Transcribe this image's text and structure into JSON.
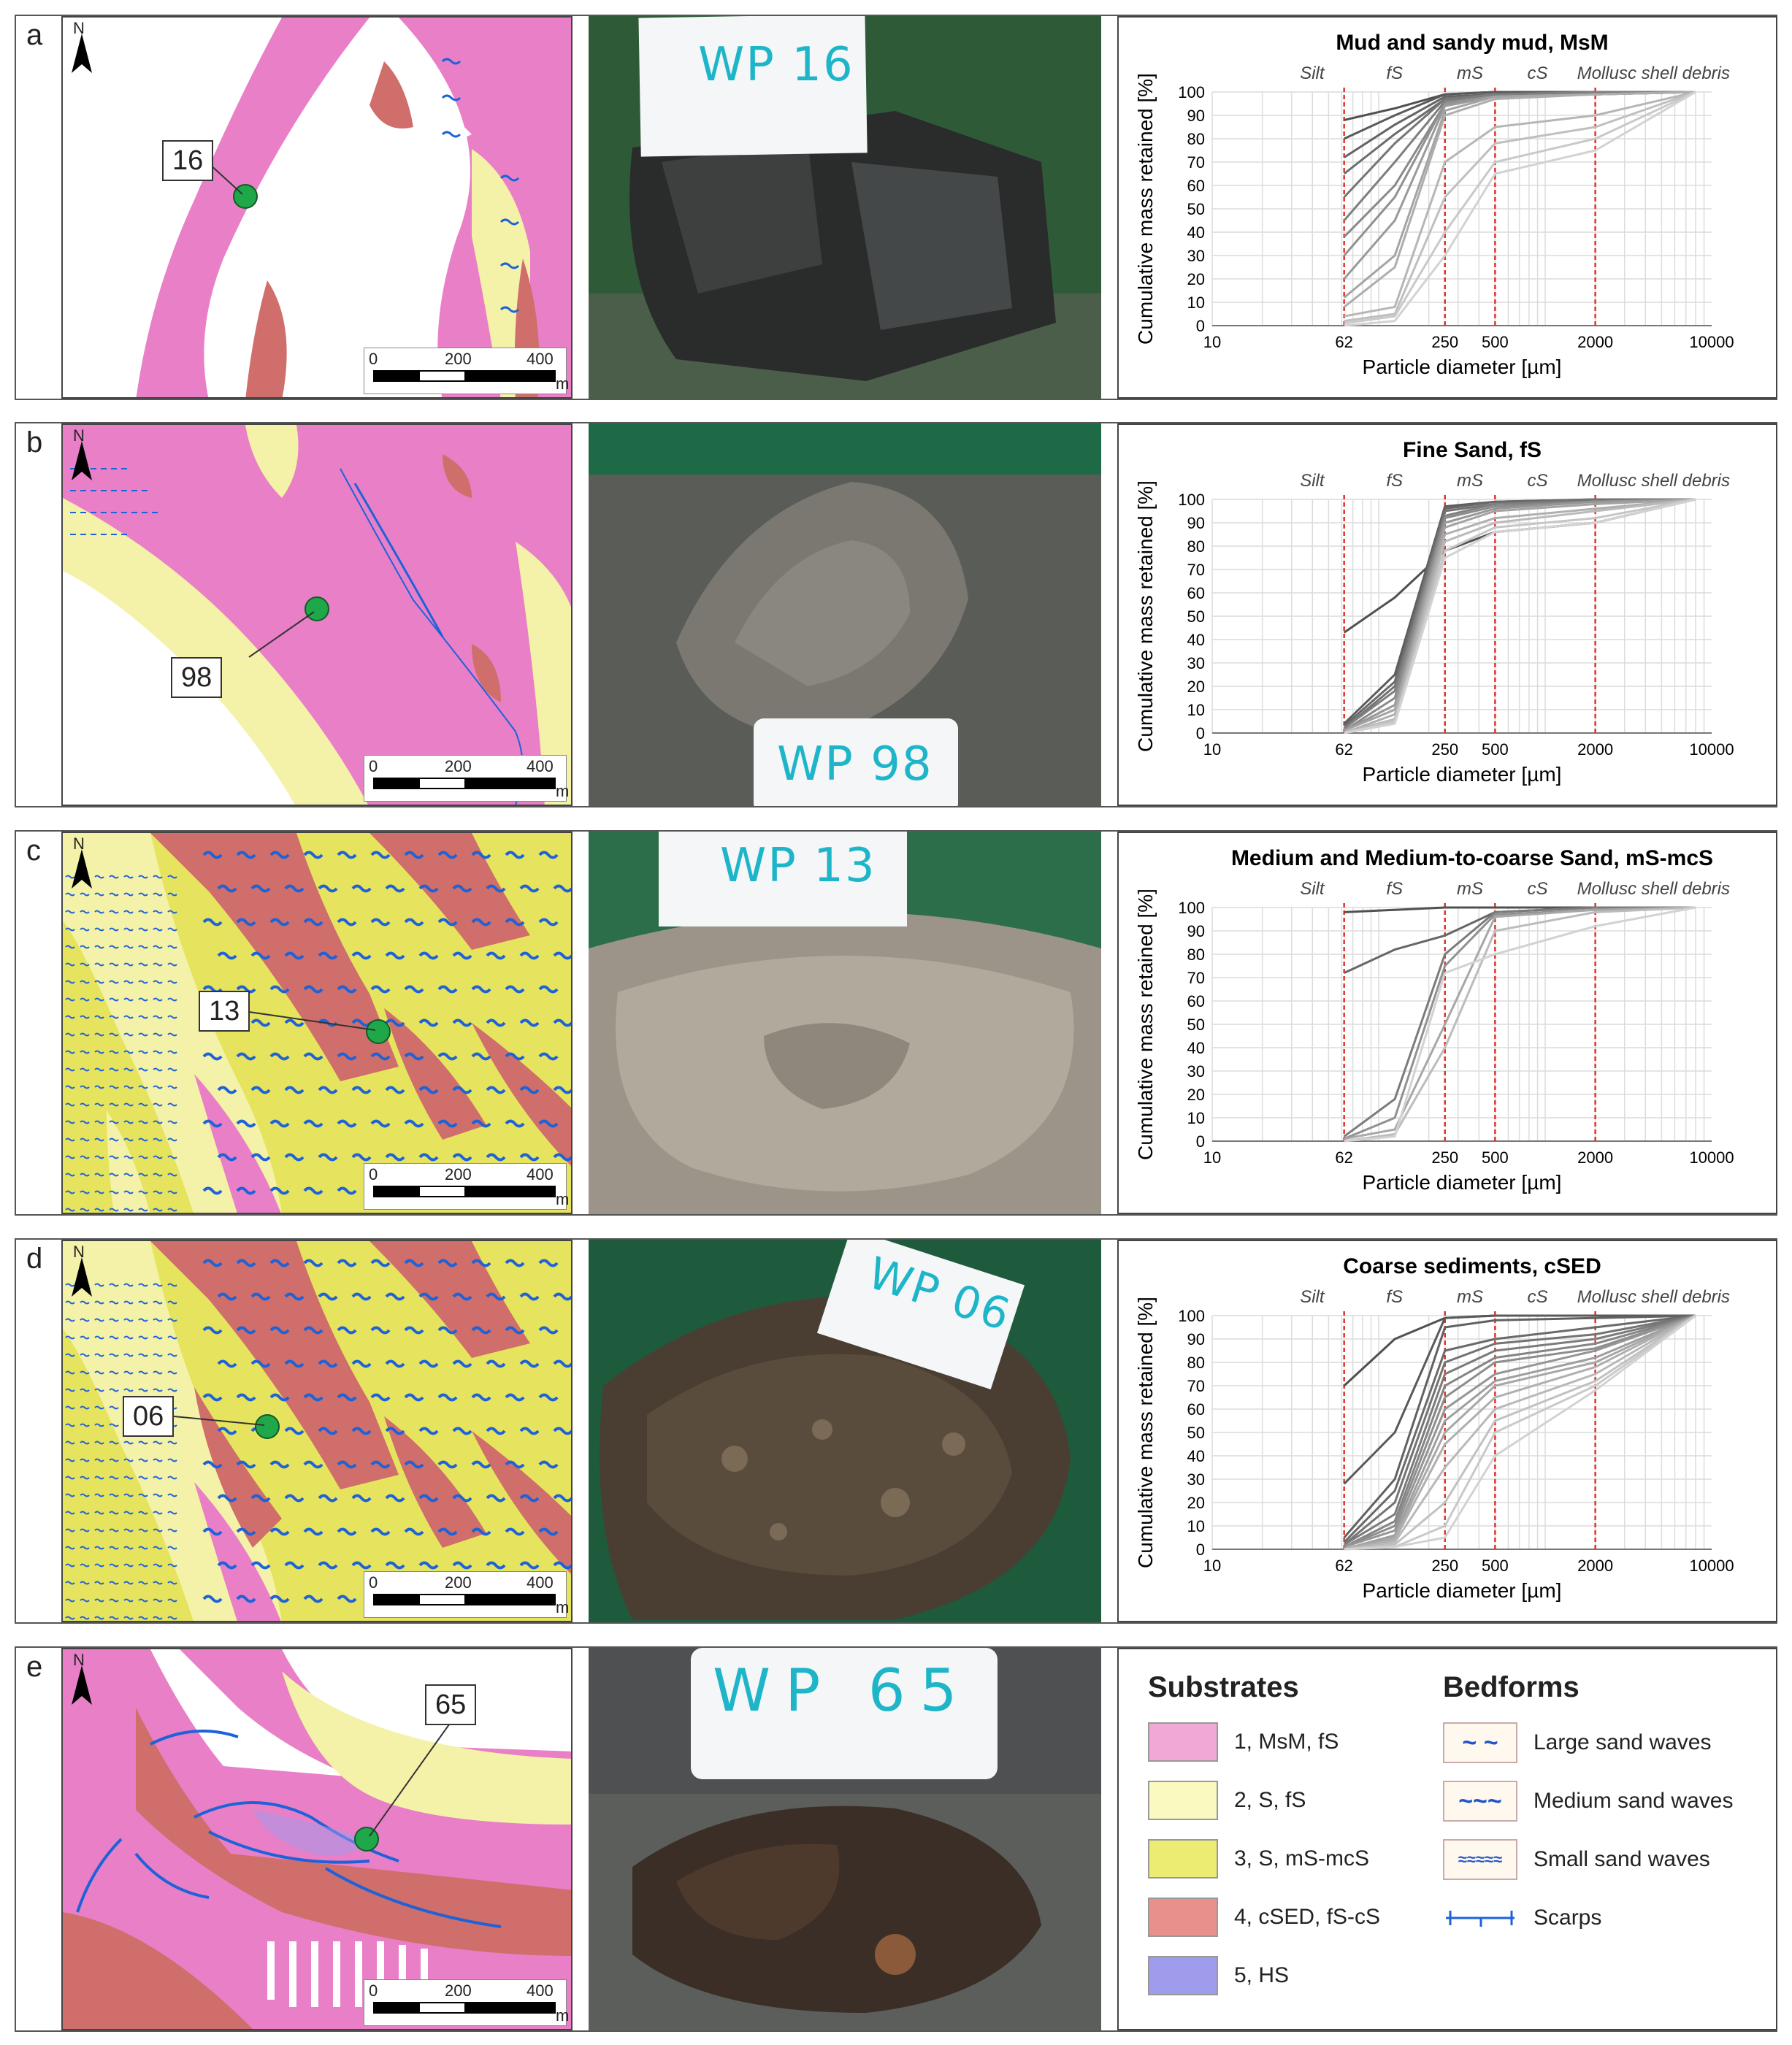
{
  "panels": [
    {
      "letter": "a",
      "callout": "16",
      "photo_label": "WP 16",
      "chart_title": "Mud and sandy mud, MsM"
    },
    {
      "letter": "b",
      "callout": "98",
      "photo_label": "WP 98",
      "chart_title": "Fine Sand, fS"
    },
    {
      "letter": "c",
      "callout": "13",
      "photo_label": "WP 13",
      "chart_title": "Medium and Medium-to-coarse Sand, mS-mcS"
    },
    {
      "letter": "d",
      "callout": "06",
      "photo_label": "WP 06",
      "chart_title": "Coarse sediments, cSED"
    },
    {
      "letter": "e",
      "callout": "65",
      "photo_label": "WP 65"
    }
  ],
  "map": {
    "north": "N",
    "scale_0": "0",
    "scale_200": "200",
    "scale_400": "400",
    "scale_unit": "m"
  },
  "chart_common": {
    "ylabel": "Cumulative mass retained [%]",
    "xlabel": "Particle diameter [µm]",
    "class_labels": [
      "Silt",
      "fS",
      "mS",
      "cS",
      "Mollusc shell debris"
    ],
    "x_ticks": [
      "10",
      "62",
      "250",
      "500",
      "2000",
      "10000"
    ],
    "y_ticks": [
      "0",
      "10",
      "20",
      "30",
      "40",
      "50",
      "60",
      "70",
      "80",
      "90",
      "100"
    ],
    "boundaries": [
      62,
      250,
      500,
      2000
    ]
  },
  "chart_data": [
    {
      "type": "line",
      "title": "Mud and sandy mud, MsM",
      "xlabel": "Particle diameter [µm]",
      "ylabel": "Cumulative mass retained [%]",
      "x_scale": "log",
      "xlim": [
        10,
        10000
      ],
      "ylim": [
        0,
        100
      ],
      "x": [
        62,
        125,
        250,
        500,
        2000,
        8000
      ],
      "series": [
        {
          "values": [
            88,
            93,
            99,
            100,
            100,
            100
          ]
        },
        {
          "values": [
            80,
            90,
            99,
            100,
            100,
            100
          ]
        },
        {
          "values": [
            72,
            86,
            98,
            99,
            100,
            100
          ]
        },
        {
          "values": [
            65,
            82,
            97,
            99,
            100,
            100
          ]
        },
        {
          "values": [
            55,
            78,
            97,
            99,
            100,
            100
          ]
        },
        {
          "values": [
            45,
            70,
            96,
            99,
            100,
            100
          ]
        },
        {
          "values": [
            38,
            60,
            95,
            98,
            99,
            100
          ]
        },
        {
          "values": [
            30,
            55,
            95,
            98,
            99,
            100
          ]
        },
        {
          "values": [
            20,
            45,
            94,
            98,
            99,
            100
          ]
        },
        {
          "values": [
            12,
            30,
            92,
            98,
            99,
            100
          ]
        },
        {
          "values": [
            8,
            25,
            90,
            97,
            99,
            100
          ]
        },
        {
          "values": [
            4,
            8,
            70,
            85,
            90,
            100
          ]
        },
        {
          "values": [
            2,
            5,
            55,
            78,
            85,
            100
          ]
        },
        {
          "values": [
            1,
            4,
            40,
            70,
            80,
            100
          ]
        },
        {
          "values": [
            0,
            2,
            30,
            65,
            75,
            100
          ]
        }
      ]
    },
    {
      "type": "line",
      "title": "Fine Sand, fS",
      "xlabel": "Particle diameter [µm]",
      "ylabel": "Cumulative mass retained [%]",
      "x_scale": "log",
      "xlim": [
        10,
        10000
      ],
      "ylim": [
        0,
        100
      ],
      "x": [
        62,
        125,
        250,
        500,
        2000,
        8000
      ],
      "series": [
        {
          "values": [
            43,
            58,
            78,
            86,
            90,
            100
          ]
        },
        {
          "values": [
            4,
            25,
            97,
            99,
            100,
            100
          ]
        },
        {
          "values": [
            3,
            22,
            96,
            99,
            100,
            100
          ]
        },
        {
          "values": [
            2,
            20,
            95,
            98,
            100,
            100
          ]
        },
        {
          "values": [
            2,
            18,
            93,
            98,
            99,
            100
          ]
        },
        {
          "values": [
            1,
            15,
            92,
            97,
            99,
            100
          ]
        },
        {
          "values": [
            1,
            12,
            90,
            96,
            99,
            100
          ]
        },
        {
          "values": [
            1,
            10,
            88,
            95,
            98,
            100
          ]
        },
        {
          "values": [
            0,
            8,
            85,
            92,
            96,
            100
          ]
        },
        {
          "values": [
            0,
            6,
            82,
            90,
            95,
            100
          ]
        },
        {
          "values": [
            0,
            5,
            78,
            88,
            92,
            100
          ]
        },
        {
          "values": [
            0,
            4,
            75,
            86,
            90,
            100
          ]
        }
      ]
    },
    {
      "type": "line",
      "title": "Medium and Medium-to-coarse Sand, mS-mcS",
      "xlabel": "Particle diameter [µm]",
      "ylabel": "Cumulative mass retained [%]",
      "x_scale": "log",
      "xlim": [
        10,
        10000
      ],
      "ylim": [
        0,
        100
      ],
      "x": [
        62,
        125,
        250,
        500,
        2000,
        8000
      ],
      "series": [
        {
          "values": [
            98,
            99,
            100,
            100,
            100,
            100
          ]
        },
        {
          "values": [
            72,
            82,
            88,
            98,
            100,
            100
          ]
        },
        {
          "values": [
            2,
            18,
            80,
            98,
            100,
            100
          ]
        },
        {
          "values": [
            1,
            10,
            75,
            97,
            99,
            100
          ]
        },
        {
          "values": [
            1,
            5,
            50,
            96,
            99,
            100
          ]
        },
        {
          "values": [
            0,
            3,
            40,
            90,
            98,
            100
          ]
        },
        {
          "values": [
            0,
            2,
            72,
            80,
            92,
            100
          ]
        }
      ]
    },
    {
      "type": "line",
      "title": "Coarse sediments, cSED",
      "xlabel": "Particle diameter [µm]",
      "ylabel": "Cumulative mass retained [%]",
      "x_scale": "log",
      "xlim": [
        10,
        10000
      ],
      "ylim": [
        0,
        100
      ],
      "x": [
        62,
        125,
        250,
        500,
        2000,
        8000
      ],
      "series": [
        {
          "values": [
            70,
            90,
            99,
            100,
            100,
            100
          ]
        },
        {
          "values": [
            28,
            50,
            99,
            100,
            100,
            100
          ]
        },
        {
          "values": [
            5,
            30,
            95,
            98,
            99,
            100
          ]
        },
        {
          "values": [
            3,
            25,
            85,
            90,
            95,
            100
          ]
        },
        {
          "values": [
            2,
            20,
            80,
            88,
            92,
            100
          ]
        },
        {
          "values": [
            2,
            15,
            75,
            85,
            90,
            100
          ]
        },
        {
          "values": [
            1,
            12,
            70,
            82,
            88,
            100
          ]
        },
        {
          "values": [
            1,
            10,
            65,
            80,
            86,
            100
          ]
        },
        {
          "values": [
            1,
            8,
            60,
            75,
            85,
            100
          ]
        },
        {
          "values": [
            0,
            6,
            55,
            72,
            82,
            100
          ]
        },
        {
          "values": [
            0,
            5,
            50,
            70,
            80,
            100
          ]
        },
        {
          "values": [
            0,
            4,
            45,
            65,
            78,
            100
          ]
        },
        {
          "values": [
            0,
            3,
            35,
            60,
            75,
            100
          ]
        },
        {
          "values": [
            0,
            2,
            20,
            55,
            72,
            100
          ]
        },
        {
          "values": [
            0,
            1,
            10,
            50,
            70,
            100
          ]
        },
        {
          "values": [
            0,
            1,
            5,
            40,
            68,
            100
          ]
        }
      ]
    }
  ],
  "legend": {
    "substrates_title": "Substrates",
    "bedforms_title": "Bedforms",
    "substrates": [
      {
        "label": "1, MsM, fS",
        "color": "#f2a8d6"
      },
      {
        "label": "2, S, fS",
        "color": "#fafac0"
      },
      {
        "label": "3, S, mS-mcS",
        "color": "#ecec72"
      },
      {
        "label": "4, cSED, fS-cS",
        "color": "#e8908c"
      },
      {
        "label": "5, HS",
        "color": "#a09cec"
      }
    ],
    "bedforms": [
      {
        "label": "Large sand waves",
        "symbol": "~  ~"
      },
      {
        "label": "Medium sand waves",
        "symbol": "~~~"
      },
      {
        "label": "Small sand waves",
        "symbol": "≈≈≈≈≈"
      },
      {
        "label": "Scarps",
        "symbol": ""
      }
    ]
  },
  "colors": {
    "pink": "#e97fc7",
    "yellow_light": "#f4f2a8",
    "yellow": "#e6e45e",
    "red": "#cf6e6a",
    "blue": "#1e62d8",
    "green": "#1fa84a",
    "grid": "#d8d8d8",
    "boundary": "#e0342c"
  }
}
